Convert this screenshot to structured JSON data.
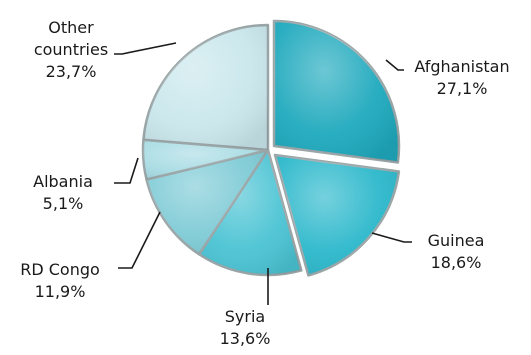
{
  "chart_data": {
    "type": "pie",
    "title": "",
    "slices": [
      {
        "label": "Afghanistan",
        "value_label": "27,1%",
        "value": 27.1,
        "color": "#1ea9bd"
      },
      {
        "label": "Guinea",
        "value_label": "18,6%",
        "value": 18.6,
        "color": "#2bb8cb"
      },
      {
        "label": "Syria",
        "value_label": "13,6%",
        "value": 13.6,
        "color": "#4ac3d3"
      },
      {
        "label": "RD Congo",
        "value_label": "11,9%",
        "value": 11.9,
        "color": "#7fcbd6"
      },
      {
        "label": "Albania",
        "value_label": "5,1%",
        "value": 5.1,
        "color": "#a9dce4"
      },
      {
        "label": "Other countries",
        "label_lines": [
          "Other",
          "countries"
        ],
        "value_label": "23,7%",
        "value": 23.7,
        "color": "#c9e7ec"
      }
    ]
  }
}
